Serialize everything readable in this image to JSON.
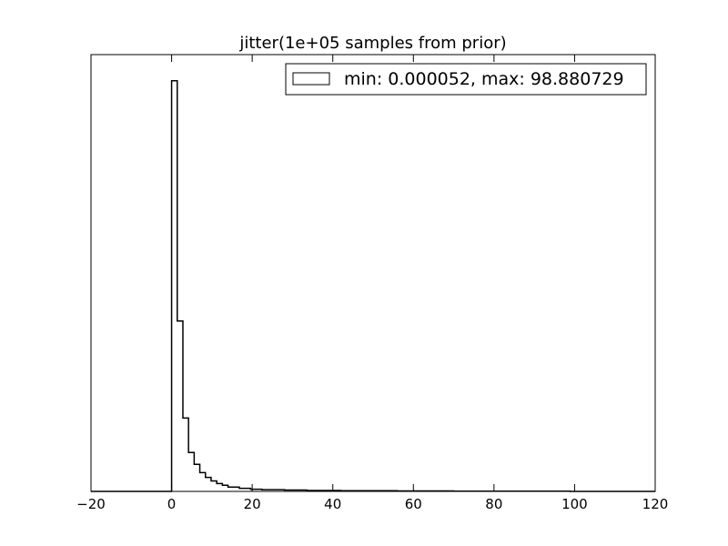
{
  "chart_data": {
    "type": "histogram",
    "title": "jitter(1e+05 samples from prior)",
    "xlabel": "",
    "ylabel": "",
    "xlim": [
      -20,
      120
    ],
    "ylim": [
      0,
      1
    ],
    "x_ticks": [
      -20,
      0,
      20,
      40,
      60,
      80,
      100,
      120
    ],
    "x_tick_labels": [
      "−20",
      "0",
      "20",
      "40",
      "60",
      "80",
      "100",
      "120"
    ],
    "y_ticks_visible": false,
    "grid": false,
    "histtype": "step",
    "legend": {
      "location": "upper right",
      "entries": [
        "min: 0.000052, max: 98.880729"
      ]
    },
    "bins": {
      "edges": [
        0,
        1.4,
        2.8,
        4.2,
        5.6,
        7.0,
        8.4,
        9.8,
        11.2,
        12.6,
        14.0,
        16.8,
        19.6,
        22.4,
        28.0,
        33.6,
        42.0,
        56.0,
        70.0,
        98.9
      ],
      "values": [
        0.94,
        0.39,
        0.168,
        0.089,
        0.062,
        0.043,
        0.032,
        0.024,
        0.018,
        0.014,
        0.01,
        0.007,
        0.005,
        0.004,
        0.003,
        0.002,
        0.0015,
        0.001,
        0.0005
      ]
    },
    "color": "#000000"
  }
}
